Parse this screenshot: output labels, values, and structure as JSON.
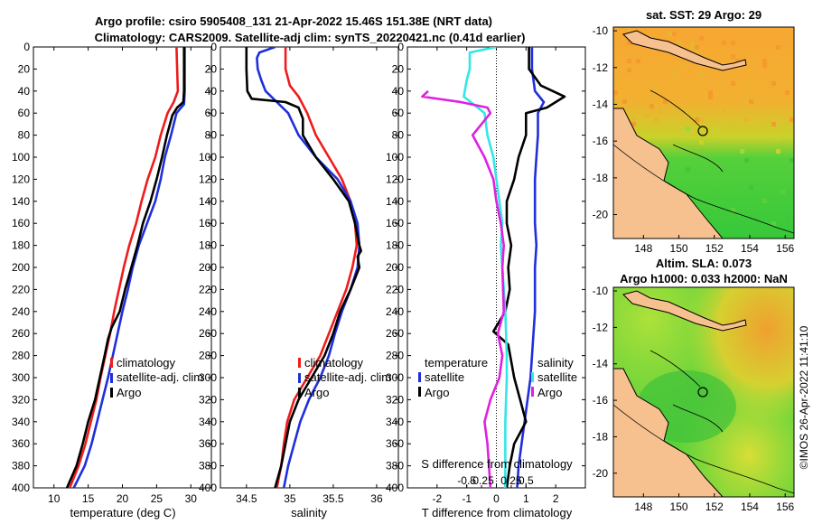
{
  "title": {
    "line1": "Argo profile: csiro 5905408_131 21-Apr-2022 15.46S 151.38E (NRT data)",
    "line2": "Climatology: CARS2009. Satellite-adj clim: synTS_20220421.nc (0.41d earlier)"
  },
  "credit": "©IMOS 26-Apr-2022 11:41:10",
  "colors": {
    "climatology": "#ee1c1c",
    "satellite": "#1f2fdc",
    "argo": "#000000",
    "satellite_s": "#33e6e6",
    "argo_s": "#e020e0",
    "land": "#f6c08f"
  },
  "chart_data": [
    {
      "id": "temperature",
      "type": "line",
      "xlabel": "temperature (deg C)",
      "ylabel": "",
      "xlim": [
        7,
        33
      ],
      "ylim": [
        400,
        0
      ],
      "xticks": [
        10,
        15,
        20,
        25,
        30
      ],
      "yticks": [
        0,
        20,
        40,
        60,
        80,
        100,
        120,
        140,
        160,
        180,
        200,
        220,
        240,
        260,
        280,
        300,
        320,
        340,
        360,
        380,
        400
      ],
      "legend": [
        "climatology",
        "satellite-adj. clim",
        "Argo"
      ],
      "series": [
        {
          "name": "climatology",
          "color": "#ee1c1c",
          "points": [
            [
              27.9,
              0
            ],
            [
              28.0,
              20
            ],
            [
              28.1,
              40
            ],
            [
              27.5,
              50
            ],
            [
              26.6,
              60
            ],
            [
              25.6,
              80
            ],
            [
              24.8,
              100
            ],
            [
              23.7,
              120
            ],
            [
              22.8,
              140
            ],
            [
              22.0,
              160
            ],
            [
              21.0,
              180
            ],
            [
              20.2,
              200
            ],
            [
              19.5,
              220
            ],
            [
              18.8,
              240
            ],
            [
              18.2,
              260
            ],
            [
              17.5,
              280
            ],
            [
              16.8,
              300
            ],
            [
              16.2,
              320
            ],
            [
              15.4,
              340
            ],
            [
              14.6,
              360
            ],
            [
              13.6,
              380
            ],
            [
              12.3,
              400
            ]
          ]
        },
        {
          "name": "satellite-adj. clim",
          "color": "#1f2fdc",
          "points": [
            [
              29.1,
              0
            ],
            [
              29.1,
              20
            ],
            [
              29.1,
              40
            ],
            [
              29.0,
              52
            ],
            [
              27.9,
              60
            ],
            [
              27.1,
              80
            ],
            [
              26.2,
              100
            ],
            [
              25.6,
              120
            ],
            [
              24.8,
              140
            ],
            [
              23.6,
              160
            ],
            [
              22.4,
              180
            ],
            [
              21.5,
              200
            ],
            [
              20.8,
              220
            ],
            [
              20.0,
              240
            ],
            [
              19.3,
              260
            ],
            [
              18.6,
              280
            ],
            [
              17.9,
              300
            ],
            [
              17.1,
              320
            ],
            [
              16.3,
              340
            ],
            [
              15.5,
              360
            ],
            [
              14.5,
              380
            ],
            [
              12.9,
              400
            ]
          ]
        },
        {
          "name": "Argo",
          "color": "#000000",
          "points": [
            [
              29.0,
              0
            ],
            [
              29.0,
              20
            ],
            [
              29.0,
              40
            ],
            [
              28.9,
              50
            ],
            [
              28.0,
              55
            ],
            [
              27.3,
              62
            ],
            [
              26.5,
              80
            ],
            [
              25.8,
              100
            ],
            [
              25.0,
              120
            ],
            [
              24.1,
              140
            ],
            [
              23.0,
              160
            ],
            [
              22.2,
              180
            ],
            [
              21.3,
              200
            ],
            [
              20.4,
              220
            ],
            [
              19.6,
              240
            ],
            [
              18.4,
              255
            ],
            [
              17.9,
              265
            ],
            [
              17.4,
              280
            ],
            [
              16.7,
              300
            ],
            [
              16.0,
              320
            ],
            [
              15.0,
              340
            ],
            [
              14.2,
              360
            ],
            [
              13.3,
              380
            ],
            [
              11.9,
              400
            ]
          ]
        }
      ]
    },
    {
      "id": "salinity",
      "type": "line",
      "xlabel": "salinity",
      "ylabel": "",
      "xlim": [
        34.2,
        36.25
      ],
      "ylim": [
        400,
        0
      ],
      "xticks": [
        34.5,
        35,
        35.5,
        36
      ],
      "legend": [
        "climatology",
        "satellite-adj. clim",
        "Argo"
      ],
      "series": [
        {
          "name": "climatology",
          "color": "#ee1c1c",
          "points": [
            [
              34.95,
              0
            ],
            [
              34.95,
              20
            ],
            [
              35.0,
              35
            ],
            [
              35.1,
              45
            ],
            [
              35.2,
              60
            ],
            [
              35.3,
              80
            ],
            [
              35.45,
              100
            ],
            [
              35.6,
              120
            ],
            [
              35.7,
              140
            ],
            [
              35.75,
              160
            ],
            [
              35.77,
              180
            ],
            [
              35.72,
              200
            ],
            [
              35.65,
              220
            ],
            [
              35.55,
              240
            ],
            [
              35.45,
              260
            ],
            [
              35.35,
              280
            ],
            [
              35.2,
              300
            ],
            [
              35.05,
              320
            ],
            [
              34.97,
              340
            ],
            [
              34.93,
              360
            ],
            [
              34.9,
              380
            ],
            [
              34.85,
              400
            ]
          ]
        },
        {
          "name": "satellite-adj. clim",
          "color": "#1f2fdc",
          "points": [
            [
              34.83,
              0
            ],
            [
              34.65,
              5
            ],
            [
              34.62,
              10
            ],
            [
              34.63,
              20
            ],
            [
              34.67,
              30
            ],
            [
              34.72,
              40
            ],
            [
              34.85,
              50
            ],
            [
              34.98,
              60
            ],
            [
              35.1,
              80
            ],
            [
              35.3,
              100
            ],
            [
              35.55,
              120
            ],
            [
              35.7,
              140
            ],
            [
              35.78,
              160
            ],
            [
              35.8,
              180
            ],
            [
              35.78,
              200
            ],
            [
              35.7,
              220
            ],
            [
              35.6,
              240
            ],
            [
              35.52,
              260
            ],
            [
              35.45,
              280
            ],
            [
              35.35,
              300
            ],
            [
              35.22,
              320
            ],
            [
              35.12,
              340
            ],
            [
              35.05,
              360
            ],
            [
              34.98,
              380
            ],
            [
              34.93,
              400
            ]
          ]
        },
        {
          "name": "Argo",
          "color": "#000000",
          "points": [
            [
              34.5,
              0
            ],
            [
              34.5,
              20
            ],
            [
              34.51,
              40
            ],
            [
              34.56,
              47
            ],
            [
              34.95,
              50
            ],
            [
              35.1,
              55
            ],
            [
              35.15,
              65
            ],
            [
              35.15,
              80
            ],
            [
              35.3,
              100
            ],
            [
              35.5,
              120
            ],
            [
              35.68,
              140
            ],
            [
              35.75,
              160
            ],
            [
              35.8,
              180
            ],
            [
              35.82,
              185
            ],
            [
              35.78,
              190
            ],
            [
              35.8,
              200
            ],
            [
              35.7,
              220
            ],
            [
              35.58,
              240
            ],
            [
              35.5,
              260
            ],
            [
              35.4,
              280
            ],
            [
              35.25,
              300
            ],
            [
              35.1,
              320
            ],
            [
              35.0,
              340
            ],
            [
              34.95,
              360
            ],
            [
              34.9,
              380
            ],
            [
              34.83,
              400
            ]
          ]
        }
      ]
    },
    {
      "id": "difference",
      "type": "line",
      "xlabel": "T difference from climatology",
      "xlabel_top": "S difference from climatology",
      "xlim": [
        -3,
        3
      ],
      "ylim": [
        400,
        0
      ],
      "xticks": [
        -2,
        -1,
        0,
        1,
        2
      ],
      "xticklabels": [
        "-2",
        "-1",
        "0",
        "1",
        "2"
      ],
      "sticks": [
        -1,
        -0.5,
        0.5,
        1
      ],
      "sticklabels": [
        "-0.5",
        "-0.25",
        "0.25",
        "0.5"
      ],
      "legend_t_title": "temperature",
      "legend_s_title": "salinity",
      "legend_t": [
        "satellite",
        "Argo"
      ],
      "legend_s": [
        "satellite",
        "Argo"
      ],
      "series": [
        {
          "name": "T satellite",
          "color": "#1f2fdc",
          "points": [
            [
              1.2,
              0
            ],
            [
              1.2,
              20
            ],
            [
              1.3,
              40
            ],
            [
              1.6,
              50
            ],
            [
              1.4,
              60
            ],
            [
              1.4,
              80
            ],
            [
              1.35,
              100
            ],
            [
              1.3,
              120
            ],
            [
              1.3,
              140
            ],
            [
              1.3,
              160
            ],
            [
              1.35,
              180
            ],
            [
              1.3,
              200
            ],
            [
              1.3,
              240
            ],
            [
              1.15,
              300
            ],
            [
              0.95,
              340
            ],
            [
              0.75,
              380
            ],
            [
              0.7,
              400
            ]
          ]
        },
        {
          "name": "T Argo",
          "color": "#000000",
          "points": [
            [
              1.1,
              0
            ],
            [
              1.1,
              20
            ],
            [
              1.5,
              35
            ],
            [
              2.3,
              45
            ],
            [
              1.7,
              55
            ],
            [
              1.0,
              60
            ],
            [
              1.0,
              80
            ],
            [
              0.75,
              100
            ],
            [
              0.6,
              120
            ],
            [
              0.35,
              140
            ],
            [
              0.35,
              160
            ],
            [
              0.5,
              180
            ],
            [
              0.4,
              200
            ],
            [
              0.45,
              220
            ],
            [
              0.3,
              240
            ],
            [
              -0.1,
              258
            ],
            [
              0.4,
              270
            ],
            [
              0.6,
              300
            ],
            [
              0.8,
              320
            ],
            [
              1.0,
              340
            ],
            [
              0.6,
              360
            ],
            [
              0.45,
              380
            ],
            [
              0.35,
              400
            ]
          ]
        },
        {
          "name": "S satellite",
          "color": "#33e6e6",
          "points": [
            [
              0.0,
              0
            ],
            [
              -0.9,
              5
            ],
            [
              -0.9,
              20
            ],
            [
              -1.0,
              30
            ],
            [
              -1.1,
              45
            ],
            [
              -0.4,
              60
            ],
            [
              -0.3,
              80
            ],
            [
              -0.1,
              100
            ],
            [
              0.0,
              120
            ],
            [
              0.1,
              140
            ],
            [
              0.2,
              160
            ],
            [
              0.15,
              180
            ],
            [
              0.2,
              200
            ],
            [
              0.3,
              240
            ],
            [
              0.35,
              280
            ],
            [
              0.35,
              300
            ],
            [
              0.3,
              340
            ],
            [
              0.3,
              400
            ]
          ]
        },
        {
          "name": "S Argo",
          "color": "#e020e0",
          "points": [
            [
              -2.3,
              40
            ],
            [
              -2.5,
              45
            ],
            [
              -1.2,
              50
            ],
            [
              -0.3,
              55
            ],
            [
              -0.2,
              60
            ],
            [
              -0.8,
              80
            ],
            [
              -0.4,
              100
            ],
            [
              -0.1,
              120
            ],
            [
              0.0,
              140
            ],
            [
              0.15,
              160
            ],
            [
              0.25,
              180
            ],
            [
              0.2,
              200
            ],
            [
              0.25,
              240
            ],
            [
              0.05,
              260
            ],
            [
              0.2,
              280
            ],
            [
              0.1,
              300
            ],
            [
              -0.2,
              320
            ],
            [
              -0.4,
              340
            ],
            [
              -0.3,
              360
            ],
            [
              -0.25,
              380
            ],
            [
              -0.2,
              400
            ]
          ]
        }
      ]
    },
    {
      "id": "sst_map",
      "type": "heatmap",
      "title": "sat. SST: 29 Argo: 29",
      "xticks": [
        148,
        150,
        152,
        154,
        156
      ],
      "yticks": [
        -10,
        -12,
        -14,
        -16,
        -18,
        -20
      ],
      "xlim": [
        146.3,
        156.5
      ],
      "ylim": [
        -21.3,
        -9.8
      ],
      "marker": [
        151.38,
        -15.46
      ]
    },
    {
      "id": "sla_map",
      "type": "heatmap",
      "title": "Altim. SLA: 0.073",
      "subtitle": "Argo h1000: 0.033 h2000: NaN",
      "xticks": [
        148,
        150,
        152,
        154,
        156
      ],
      "yticks": [
        -10,
        -12,
        -14,
        -16,
        -18,
        -20
      ],
      "xlim": [
        146.3,
        156.5
      ],
      "ylim": [
        -21.3,
        -9.8
      ],
      "marker": [
        151.38,
        -15.46
      ]
    }
  ]
}
